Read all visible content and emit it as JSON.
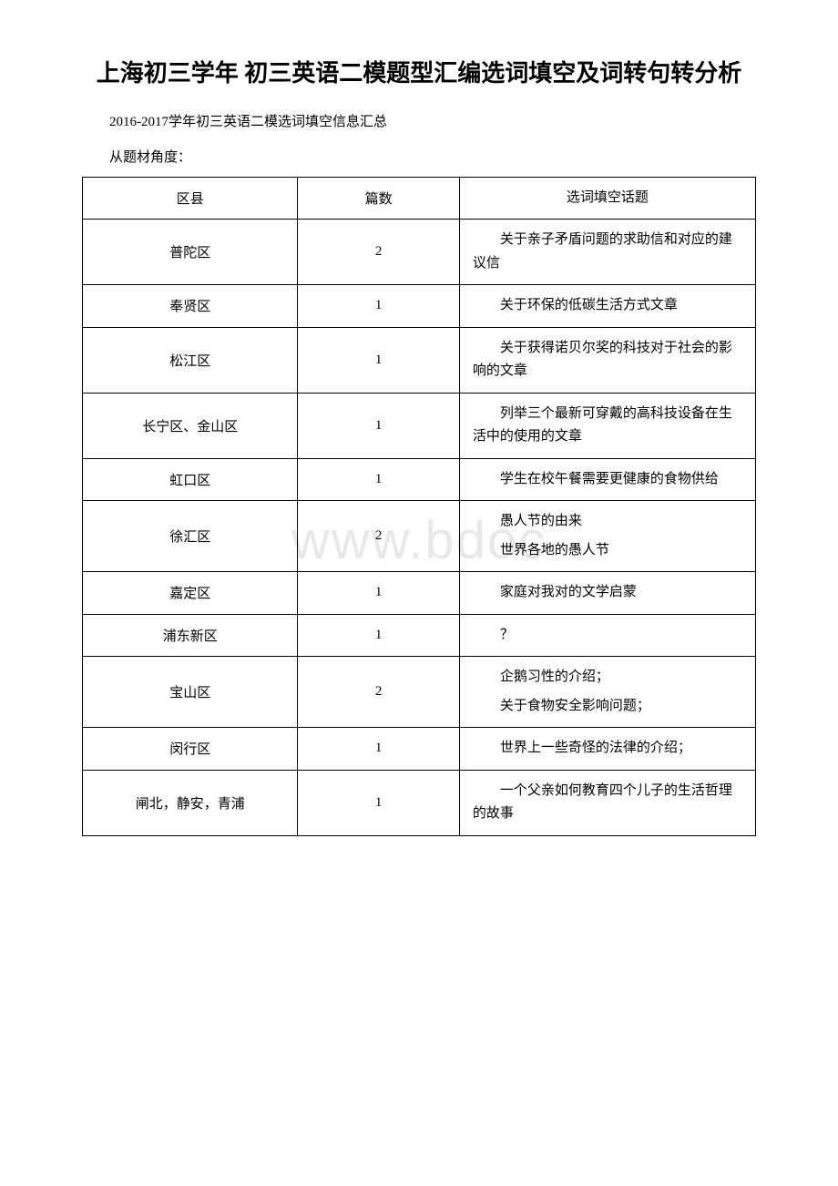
{
  "title": "上海初三学年 初三英语二模题型汇编选词填空及词转句转分析",
  "subtitle": "2016-2017学年初三英语二模选词填空信息汇总",
  "section_label": "从题材角度：",
  "watermark": "www.bdoc",
  "table": {
    "headers": {
      "district": "区县",
      "count": "篇数",
      "topic": "选词填空话题"
    },
    "rows": [
      {
        "district": "普陀区",
        "count": "2",
        "topic_lines": [
          "关于亲子矛盾问题的求助信和对应的建议信"
        ]
      },
      {
        "district": "奉贤区",
        "count": "1",
        "topic_lines": [
          "关于环保的低碳生活方式文章"
        ]
      },
      {
        "district": "松江区",
        "count": "1",
        "topic_lines": [
          "关于获得诺贝尔奖的科技对于社会的影响的文章"
        ]
      },
      {
        "district": "长宁区、金山区",
        "count": "1",
        "topic_lines": [
          "列举三个最新可穿戴的高科技设备在生活中的使用的文章"
        ]
      },
      {
        "district": "虹口区",
        "count": "1",
        "topic_lines": [
          "学生在校午餐需要更健康的食物供给"
        ]
      },
      {
        "district": "徐汇区",
        "count": "2",
        "topic_lines": [
          "愚人节的由来",
          "世界各地的愚人节"
        ]
      },
      {
        "district": "嘉定区",
        "count": "1",
        "topic_lines": [
          "家庭对我对的文学启蒙"
        ]
      },
      {
        "district": "浦东新区",
        "count": "1",
        "topic_lines": [
          "？"
        ]
      },
      {
        "district": "宝山区",
        "count": "2",
        "topic_lines": [
          "企鹅习性的介绍；",
          "关于食物安全影响问题；"
        ]
      },
      {
        "district": "闵行区",
        "count": "1",
        "topic_lines": [
          "世界上一些奇怪的法律的介绍；"
        ]
      },
      {
        "district": "闸北，静安，青浦",
        "count": "1",
        "topic_lines": [
          "一个父亲如何教育四个儿子的生活哲理的故事"
        ]
      }
    ]
  }
}
